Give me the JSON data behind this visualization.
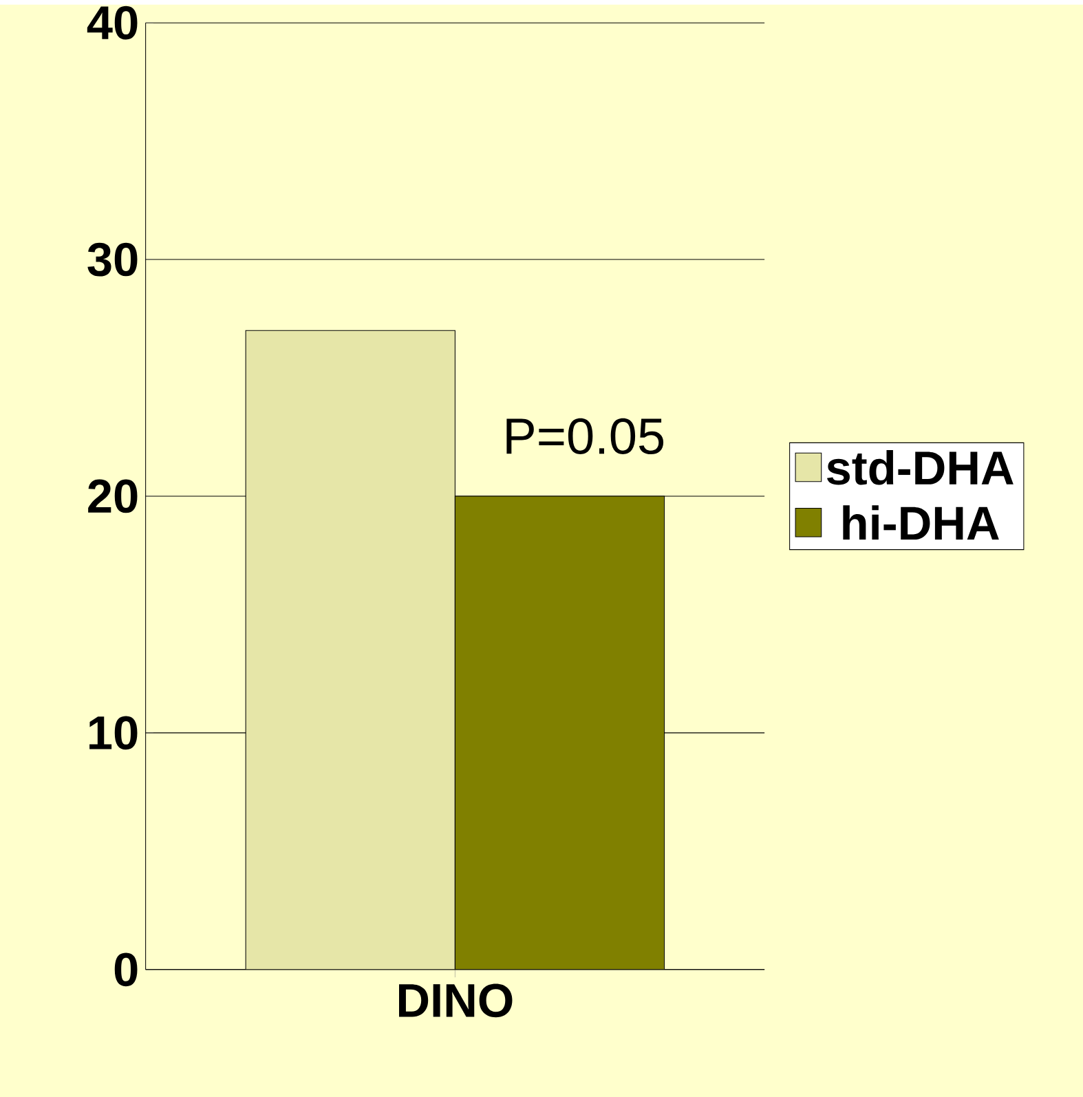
{
  "chart_data": {
    "type": "bar",
    "categories": [
      "DINO"
    ],
    "series": [
      {
        "name": "std-DHA",
        "color": "#e6e6a8",
        "values": [
          27
        ]
      },
      {
        "name": "hi-DHA",
        "color": "#808000",
        "values": [
          20
        ]
      }
    ],
    "ylim": [
      0,
      40
    ],
    "yticks": [
      0,
      10,
      20,
      30,
      40
    ],
    "grid": "y",
    "legend": "right",
    "annotations": [
      "P=0.05"
    ]
  }
}
